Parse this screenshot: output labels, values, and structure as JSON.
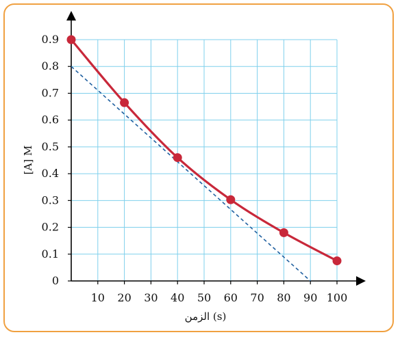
{
  "chart_data": {
    "type": "line",
    "xlabel": "الزمن (s)",
    "ylabel": "[A] M",
    "x_ticks": [
      10,
      20,
      30,
      40,
      50,
      60,
      70,
      80,
      90,
      100
    ],
    "y_ticks": [
      "0",
      "0.1",
      "0.2",
      "0.3",
      "0.4",
      "0.5",
      "0.6",
      "0.7",
      "0.8",
      "0.9"
    ],
    "xlim": [
      0,
      100
    ],
    "ylim": [
      0,
      0.9
    ],
    "grid": true,
    "series": [
      {
        "color": "#c8283a",
        "x": [
          0,
          20,
          40,
          60,
          80,
          100
        ],
        "y": [
          0.9,
          0.665,
          0.46,
          0.303,
          0.18,
          0.075
        ]
      }
    ],
    "tangent": {
      "color": "#2060a0",
      "style": "dashed",
      "x": [
        0,
        90
      ],
      "y": [
        0.8,
        0
      ]
    }
  },
  "colors": {
    "grid": "#7fd0ec",
    "border": "#f0a040",
    "axis": "#000000"
  }
}
